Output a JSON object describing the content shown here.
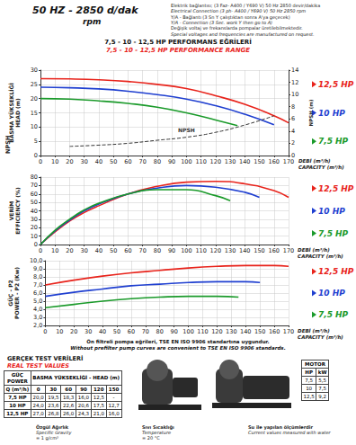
{
  "header": {
    "speed": "50 HZ - 2850 d/dak",
    "speed_unit": "rpm",
    "notes": [
      "Elektrik bağlantısı; (3 Faz- A400 / Y690 V) 50 Hz 2850 devir/dakika",
      "Electrical Connection (3 ph- A400 / Y690 V) 50 Hz 2850 rpm",
      "Y/A - Bağlantı (3 Sn Y çalıştıktan sonra A'ya geçecek)",
      "Y/A - Connection (3 Sec. work Y then go to A)",
      "Değişik voltaj ve frekanslarda pompalar üretilebilmektedir.",
      "Special voltages and frequencies are manufactured on request."
    ],
    "title": "7,5 - 10 - 12,5 HP PERFORMANS EĞRİLERİ",
    "subtitle": "7,5 - 10 - 12,5 HP PERFORMANCE RANGE"
  },
  "chart_data": [
    {
      "type": "line",
      "xlabel": [
        "DEBİ (m³/h)",
        "CAPACITY (m³/h)"
      ],
      "ylabel": [
        "BASMA YÜKSEKLİĞİ",
        "HEAD (m)"
      ],
      "y2label": "NPSH (m)",
      "annotations": [
        "NPSH"
      ],
      "xlim": [
        0,
        170
      ],
      "xticks": [
        0,
        10,
        20,
        30,
        40,
        50,
        60,
        70,
        80,
        90,
        100,
        110,
        120,
        130,
        140,
        150,
        160,
        170
      ],
      "ylim": [
        0,
        30
      ],
      "yticks": [
        0,
        5,
        10,
        15,
        20,
        25,
        30
      ],
      "y2lim": [
        0,
        14
      ],
      "y2ticks": [
        0,
        2,
        4,
        6,
        8,
        10,
        12,
        14
      ],
      "grid": true,
      "series": [
        {
          "name": "12,5 HP",
          "color": "#e8231b",
          "line_style": "solid",
          "x": [
            0,
            20,
            40,
            60,
            80,
            100,
            120,
            140,
            160,
            170
          ],
          "values": [
            27,
            26.9,
            26.6,
            26,
            25,
            23.5,
            21,
            18,
            14,
            11.5
          ]
        },
        {
          "name": "10 HP",
          "color": "#1f3fd0",
          "line_style": "solid",
          "x": [
            0,
            20,
            40,
            60,
            80,
            100,
            120,
            140,
            160
          ],
          "values": [
            24,
            23.8,
            23.4,
            22.6,
            21.4,
            19.8,
            17.5,
            14.5,
            10.8
          ]
        },
        {
          "name": "7,5 HP",
          "color": "#1a9a2a",
          "line_style": "solid",
          "x": [
            0,
            20,
            40,
            60,
            80,
            100,
            120,
            135
          ],
          "values": [
            20,
            19.8,
            19.2,
            18.3,
            17,
            15,
            12.5,
            10.5
          ]
        },
        {
          "name": "NPSH",
          "color": "#333333",
          "line_style": "dashed",
          "axis": "y2",
          "x": [
            20,
            40,
            60,
            80,
            100,
            120,
            140,
            160
          ],
          "values": [
            1.5,
            1.7,
            2,
            2.5,
            3,
            3.8,
            5,
            6.5
          ]
        }
      ]
    },
    {
      "type": "line",
      "xlabel": [
        "DEBİ (m³/h)",
        "CAPACITY (m³/h)"
      ],
      "ylabel": [
        "VERİM",
        "EFFICIENCY (%)"
      ],
      "xlim": [
        0,
        170
      ],
      "xticks": [
        0,
        10,
        20,
        30,
        40,
        50,
        60,
        70,
        80,
        90,
        100,
        110,
        120,
        130,
        140,
        150,
        160,
        170
      ],
      "ylim": [
        0,
        80
      ],
      "yticks": [
        0,
        10,
        20,
        30,
        40,
        50,
        60,
        70,
        80
      ],
      "grid": true,
      "series": [
        {
          "name": "12,5 HP",
          "color": "#e8231b",
          "line_style": "solid",
          "x": [
            0,
            10,
            20,
            30,
            40,
            60,
            80,
            100,
            120,
            140,
            160,
            170
          ],
          "values": [
            0,
            15,
            28,
            38,
            46,
            60,
            69,
            74,
            75,
            72,
            64,
            56
          ]
        },
        {
          "name": "10 HP",
          "color": "#1f3fd0",
          "line_style": "solid",
          "x": [
            0,
            10,
            20,
            30,
            40,
            60,
            80,
            100,
            120,
            140,
            150
          ],
          "values": [
            0,
            16,
            29,
            40,
            48,
            60,
            67,
            70,
            68,
            62,
            56
          ]
        },
        {
          "name": "7,5 HP",
          "color": "#1a9a2a",
          "line_style": "solid",
          "x": [
            0,
            10,
            20,
            30,
            40,
            60,
            80,
            100,
            120,
            130
          ],
          "values": [
            0,
            17,
            30,
            41,
            49,
            60,
            65,
            65,
            58,
            52
          ]
        }
      ]
    },
    {
      "type": "line",
      "xlabel": [
        "DEBİ (m³/h)",
        "CAPACITY (m³/h)"
      ],
      "ylabel": [
        "GÜÇ - P2",
        "POWER - P2 (Kw)"
      ],
      "xlim": [
        0,
        170
      ],
      "xticks": [
        0,
        10,
        20,
        30,
        40,
        50,
        60,
        70,
        80,
        90,
        100,
        110,
        120,
        130,
        140,
        150,
        160,
        170
      ],
      "ylim": [
        2,
        10
      ],
      "yticks": [
        {
          "value": 2,
          "label": "2,0"
        },
        {
          "value": 3,
          "label": "3,0"
        },
        {
          "value": 4,
          "label": "4,0"
        },
        {
          "value": 5,
          "label": "5,0"
        },
        {
          "value": 6,
          "label": "6,0"
        },
        {
          "value": 7,
          "label": "7,0"
        },
        {
          "value": 8,
          "label": "8,0"
        },
        {
          "value": 9,
          "label": "9,0"
        },
        {
          "value": 10,
          "label": "10,0"
        }
      ],
      "grid": true,
      "series": [
        {
          "name": "12,5 HP",
          "color": "#e8231b",
          "line_style": "solid",
          "x": [
            0,
            20,
            40,
            60,
            80,
            100,
            120,
            140,
            160,
            170
          ],
          "values": [
            7.0,
            7.6,
            8.1,
            8.5,
            8.8,
            9.1,
            9.3,
            9.4,
            9.4,
            9.3
          ]
        },
        {
          "name": "10 HP",
          "color": "#1f3fd0",
          "line_style": "solid",
          "x": [
            0,
            20,
            40,
            60,
            80,
            100,
            120,
            140,
            150
          ],
          "values": [
            5.6,
            6.1,
            6.5,
            6.9,
            7.1,
            7.3,
            7.4,
            7.4,
            7.3
          ]
        },
        {
          "name": "7,5 HP",
          "color": "#1a9a2a",
          "line_style": "solid",
          "x": [
            0,
            20,
            40,
            60,
            80,
            100,
            120,
            135
          ],
          "values": [
            4.2,
            4.6,
            5.0,
            5.3,
            5.5,
            5.6,
            5.6,
            5.5
          ]
        }
      ]
    }
  ],
  "standard_note": [
    "Ön filtreli pompa eğrileri, TSE EN ISO 9906 standartına uygundur.",
    "Without prefilter pump curves are convenient to TSE EN ISO 9906 standards."
  ],
  "test_table": {
    "title": "GERÇEK TEST VERİLERİ",
    "subtitle": "REAL TEST VALUES",
    "corner": [
      "GÜÇ",
      "POWER"
    ],
    "head_header": "BASMA YÜKSEKLİĞİ - HEAD (m)",
    "q_label": "Q (m³/h)",
    "q": [
      "0",
      "30",
      "60",
      "90",
      "120",
      "150"
    ],
    "rows": [
      [
        "7,5 HP",
        "20,0",
        "19,5",
        "18,3",
        "16,0",
        "12,5",
        "-"
      ],
      [
        "10 HP",
        "24,0",
        "23,6",
        "22,6",
        "20,6",
        "17,5",
        "12,7"
      ],
      [
        "12,5 HP",
        "27,0",
        "26,8",
        "26,0",
        "24,3",
        "21,0",
        "16,0"
      ]
    ]
  },
  "motor_table": {
    "title": "MOTOR",
    "columns": [
      "HP",
      "kW"
    ],
    "rows": [
      [
        "7,5",
        "5,5"
      ],
      [
        "10",
        "7,5"
      ],
      [
        "12,5",
        "9,2"
      ]
    ]
  },
  "footer": [
    [
      "Özgül Ağırlık",
      "Specific Gravity",
      "= 1 g/cm³"
    ],
    [
      "Sıvı Sıcaklığı",
      "Temperature",
      "= 20 °C"
    ],
    [
      "Su ile yapılan ölçümlerdir",
      "Current values measured with water",
      ""
    ]
  ]
}
